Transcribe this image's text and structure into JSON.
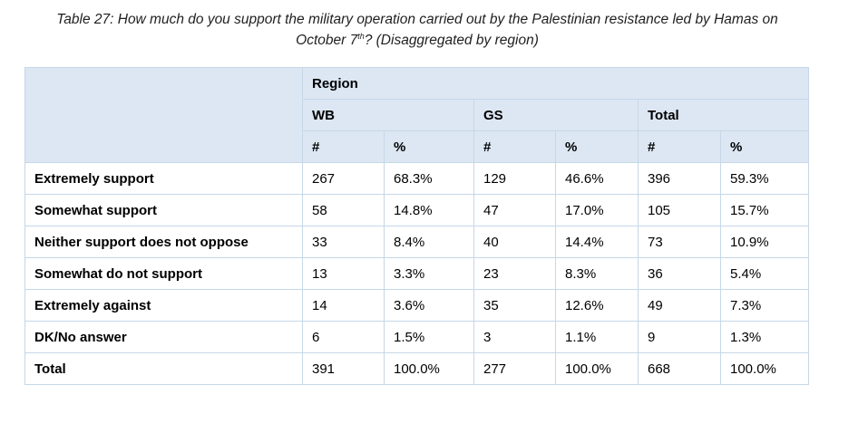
{
  "caption": {
    "line1": "Table 27: How much do you support the military operation carried out by the Palestinian resistance led by Hamas on",
    "line2_pre": "October 7",
    "line2_sup": "th",
    "line2_post": "? (Disaggregated by region)"
  },
  "table": {
    "group_header": "Region",
    "regions": [
      "WB",
      "GS",
      "Total"
    ],
    "subheaders": [
      "#",
      "%",
      "#",
      "%",
      "#",
      "%"
    ],
    "rows": [
      {
        "label": "Extremely support",
        "values": [
          "267",
          "68.3%",
          "129",
          "46.6%",
          "396",
          "59.3%"
        ]
      },
      {
        "label": "Somewhat support",
        "values": [
          "58",
          "14.8%",
          "47",
          "17.0%",
          "105",
          "15.7%"
        ]
      },
      {
        "label": "Neither support does not oppose",
        "values": [
          "33",
          "8.4%",
          "40",
          "14.4%",
          "73",
          "10.9%"
        ]
      },
      {
        "label": "Somewhat do not support",
        "values": [
          "13",
          "3.3%",
          "23",
          "8.3%",
          "36",
          "5.4%"
        ]
      },
      {
        "label": "Extremely against",
        "values": [
          "14",
          "3.6%",
          "35",
          "12.6%",
          "49",
          "7.3%"
        ]
      },
      {
        "label": "DK/No answer",
        "values": [
          "6",
          "1.5%",
          "3",
          "1.1%",
          "9",
          "1.3%"
        ]
      },
      {
        "label": "Total",
        "values": [
          "391",
          "100.0%",
          "277",
          "100.0%",
          "668",
          "100.0%"
        ]
      }
    ]
  },
  "colors": {
    "header_fill": "#dce7f3",
    "border": "#c6d7e8"
  }
}
